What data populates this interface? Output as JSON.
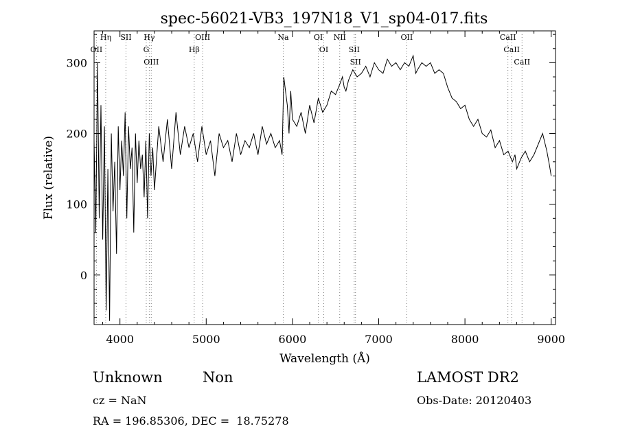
{
  "chart_data": {
    "type": "line",
    "title": "spec-56021-VB3_197N18_V1_sp04-017.fits",
    "xlabel": "Wavelength (Å)",
    "ylabel": "Flux (relative)",
    "xlim": [
      3700,
      9050
    ],
    "ylim": [
      -70,
      345
    ],
    "xticks": [
      4000,
      5000,
      6000,
      7000,
      8000,
      9000
    ],
    "yticks": [
      0,
      100,
      200,
      300
    ],
    "series": [
      {
        "x": [
          3700,
          3720,
          3740,
          3760,
          3780,
          3800,
          3820,
          3840,
          3860,
          3880,
          3900,
          3920,
          3940,
          3960,
          3980,
          4000,
          4020,
          4040,
          4060,
          4080,
          4100,
          4120,
          4140,
          4160,
          4180,
          4200,
          4220,
          4240,
          4260,
          4280,
          4300,
          4320,
          4340,
          4360,
          4380,
          4400,
          4450,
          4500,
          4550,
          4600,
          4650,
          4700,
          4750,
          4800,
          4850,
          4900,
          4950,
          5000,
          5050,
          5100,
          5150,
          5200,
          5250,
          5300,
          5350,
          5400,
          5450,
          5500,
          5550,
          5600,
          5650,
          5700,
          5750,
          5800,
          5850,
          5880,
          5900,
          5920,
          5940,
          5960,
          5980,
          6000,
          6050,
          6100,
          6150,
          6200,
          6250,
          6300,
          6350,
          6400,
          6450,
          6500,
          6550,
          6580,
          6600,
          6620,
          6650,
          6700,
          6750,
          6800,
          6850,
          6900,
          6950,
          7000,
          7050,
          7100,
          7150,
          7200,
          7250,
          7300,
          7350,
          7400,
          7430,
          7450,
          7500,
          7550,
          7600,
          7650,
          7700,
          7750,
          7800,
          7850,
          7900,
          7950,
          8000,
          8050,
          8100,
          8150,
          8200,
          8250,
          8300,
          8350,
          8400,
          8450,
          8500,
          8550,
          8580,
          8600,
          8650,
          8700,
          8750,
          8800,
          8850,
          8900,
          8950,
          8980,
          9000
        ],
        "y": [
          190,
          60,
          300,
          80,
          240,
          50,
          210,
          -50,
          150,
          -65,
          200,
          90,
          160,
          30,
          210,
          120,
          190,
          140,
          230,
          80,
          210,
          150,
          180,
          60,
          200,
          130,
          190,
          150,
          170,
          110,
          190,
          80,
          200,
          140,
          180,
          120,
          210,
          160,
          220,
          150,
          230,
          170,
          210,
          180,
          200,
          160,
          210,
          170,
          190,
          140,
          200,
          180,
          190,
          160,
          200,
          170,
          190,
          180,
          200,
          170,
          210,
          185,
          200,
          180,
          190,
          170,
          280,
          260,
          240,
          200,
          260,
          220,
          210,
          230,
          200,
          240,
          215,
          250,
          230,
          240,
          260,
          255,
          270,
          280,
          265,
          260,
          275,
          290,
          280,
          285,
          295,
          280,
          300,
          290,
          285,
          305,
          295,
          300,
          290,
          300,
          295,
          310,
          285,
          290,
          300,
          295,
          300,
          285,
          290,
          285,
          265,
          250,
          245,
          235,
          240,
          220,
          210,
          220,
          200,
          195,
          205,
          180,
          190,
          170,
          175,
          160,
          170,
          150,
          165,
          175,
          160,
          170,
          185,
          200,
          175,
          155,
          140
        ]
      }
    ],
    "line_labels": [
      {
        "text": "Hη",
        "wl": 3835
      },
      {
        "text": "OII",
        "wl": 3727
      },
      {
        "text": "SII",
        "wl": 4070
      },
      {
        "text": "Hγ",
        "wl": 4340
      },
      {
        "text": "G",
        "wl": 4305
      },
      {
        "text": "OIII",
        "wl": 4363
      },
      {
        "text": "OIII",
        "wl": 4959
      },
      {
        "text": "Hβ",
        "wl": 4861
      },
      {
        "text": "Na",
        "wl": 5893
      },
      {
        "text": "OI",
        "wl": 6300
      },
      {
        "text": "OI",
        "wl": 6363
      },
      {
        "text": "NII",
        "wl": 6548
      },
      {
        "text": "SII",
        "wl": 6716
      },
      {
        "text": "SII",
        "wl": 6731
      },
      {
        "text": "OII",
        "wl": 7325
      },
      {
        "text": "CaII",
        "wl": 8498
      },
      {
        "text": "CaII",
        "wl": 8542
      },
      {
        "text": "CaII",
        "wl": 8662
      }
    ],
    "grid": false
  },
  "info": {
    "class_label": "Unknown",
    "subclass_label": "Non",
    "survey": "LAMOST DR2",
    "cz": "cz = NaN",
    "obs_date": "Obs-Date: 20120403",
    "coords": "RA = 196.85306, DEC =  18.75278"
  }
}
